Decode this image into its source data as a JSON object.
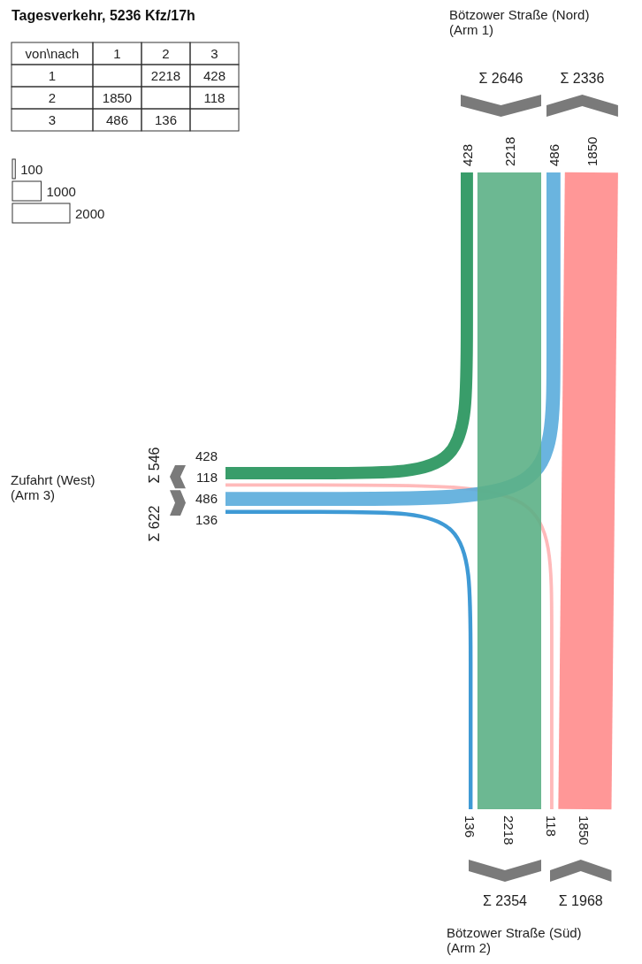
{
  "chart_data": {
    "type": "other",
    "title": "Tagesverkehr, 5236 Kfz/17h",
    "legend_title": "von\\nach",
    "categories": [
      "1",
      "2",
      "3"
    ],
    "series": [
      {
        "name": "1",
        "values": [
          null,
          2218,
          428
        ],
        "colors": [
          null,
          "#5cb086",
          "#24925a"
        ]
      },
      {
        "name": "2",
        "values": [
          1850,
          null,
          118
        ],
        "colors": [
          "#ff8c8c",
          null,
          "#ffb2b2"
        ]
      },
      {
        "name": "3",
        "values": [
          486,
          136,
          null
        ],
        "colors": [
          "#5aacdc",
          "#2a8fd0",
          null
        ]
      }
    ],
    "annotations": [
      "Bötzower Straße (Nord)\n(Arm 1)",
      "Bötzower Straße (Süd)\n(Arm 2)",
      "Zufahrt (West)\n(Arm 3)",
      "100",
      "1000",
      "2000",
      "428",
      "2218",
      "486",
      "1850",
      "136",
      "2218",
      "118",
      "1850",
      "428",
      "118",
      "486",
      "136"
    ],
    "totals": [
      "Σ 2646",
      "Σ 2336",
      "Σ 2354",
      "Σ 1968",
      "Σ 546",
      "Σ 622"
    ],
    "data_labels": true
  }
}
